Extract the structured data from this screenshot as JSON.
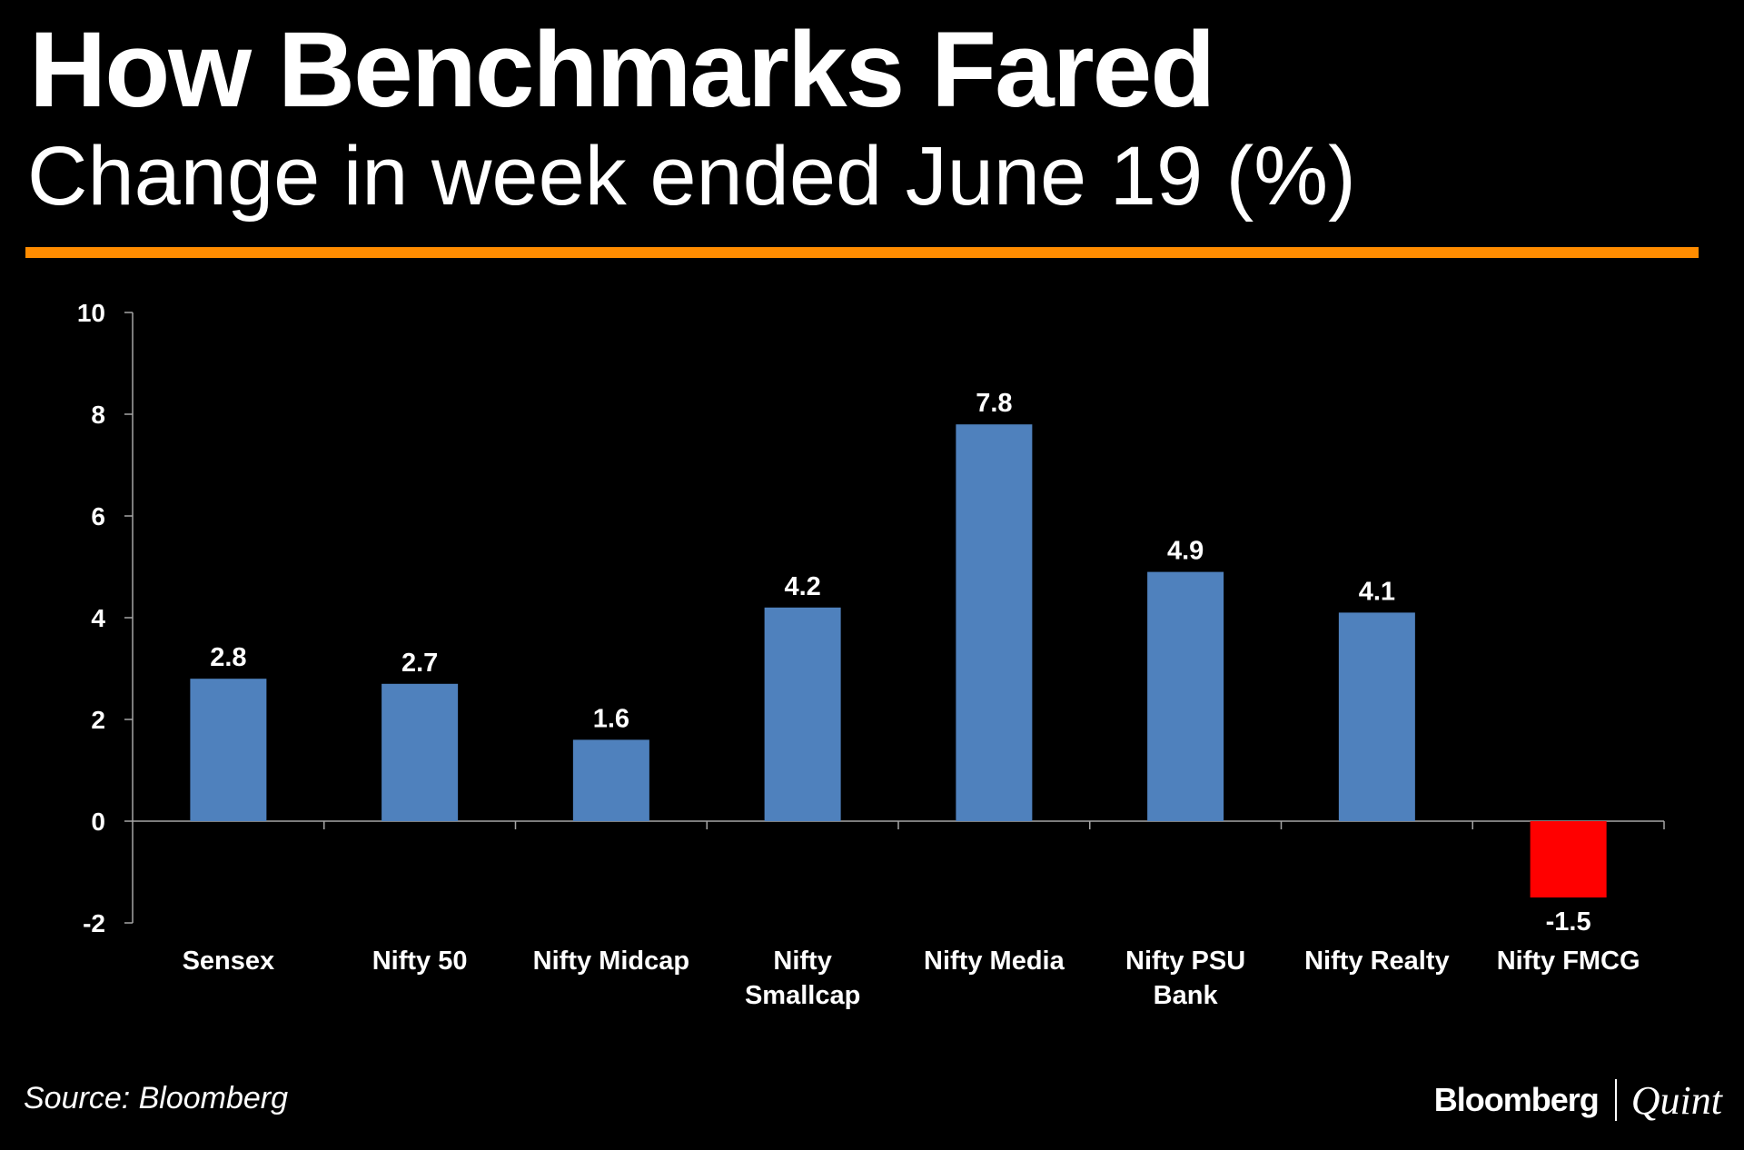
{
  "header": {
    "title": "How Benchmarks Fared",
    "subtitle": "Change in week ended June 19 (%)"
  },
  "colors": {
    "background": "#000000",
    "accent": "#FF8C00",
    "positive_bar": "#4F81BD",
    "negative_bar": "#FF0000",
    "text": "#FFFFFF",
    "axis": "#A6A6A6"
  },
  "chart_data": {
    "type": "bar",
    "categories": [
      "Sensex",
      "Nifty 50",
      "Nifty Midcap",
      "Nifty Smallcap",
      "Nifty Media",
      "Nifty PSU Bank",
      "Nifty Realty",
      "Nifty FMCG"
    ],
    "category_lines": [
      [
        "Sensex"
      ],
      [
        "Nifty 50"
      ],
      [
        "Nifty Midcap"
      ],
      [
        "Nifty",
        "Smallcap"
      ],
      [
        "Nifty Media"
      ],
      [
        "Nifty PSU",
        "Bank"
      ],
      [
        "Nifty Realty"
      ],
      [
        "Nifty FMCG"
      ]
    ],
    "values": [
      2.8,
      2.7,
      1.6,
      4.2,
      7.8,
      4.9,
      4.1,
      -1.5
    ],
    "data_labels": [
      "2.8",
      "2.7",
      "1.6",
      "4.2",
      "7.8",
      "4.9",
      "4.1",
      "-1.5"
    ],
    "ylim": [
      -2,
      10
    ],
    "yticks": [
      -2,
      0,
      2,
      4,
      6,
      8,
      10
    ],
    "ytick_labels": [
      "-2",
      "0",
      "2",
      "4",
      "6",
      "8",
      "10"
    ],
    "title": "How Benchmarks Fared",
    "subtitle": "Change in week ended June 19 (%)",
    "xlabel": "",
    "ylabel": "",
    "grid": false,
    "legend": "none"
  },
  "footer": {
    "source": "Source: Bloomberg",
    "brand_main": "Bloomberg",
    "brand_sub": "Quint"
  }
}
